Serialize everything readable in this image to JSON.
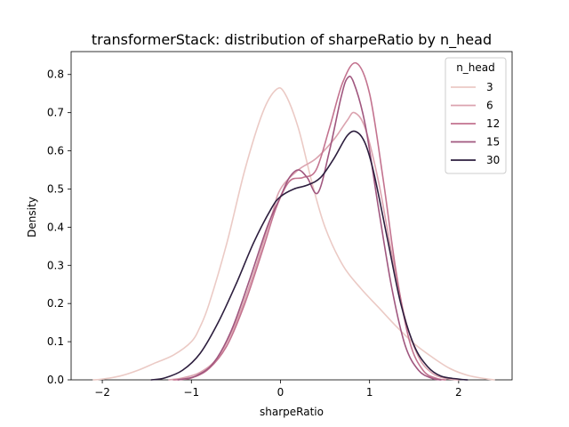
{
  "chart_data": {
    "type": "line",
    "title": "transformerStack: distribution of sharpeRatio by n_head",
    "xlabel": "sharpeRatio",
    "ylabel": "Density",
    "xlim": [
      -2.35,
      2.6
    ],
    "ylim": [
      0,
      0.86
    ],
    "x_ticks": [
      -2,
      -1,
      0,
      1,
      2
    ],
    "x_tick_labels": [
      "−2",
      "−1",
      "0",
      "1",
      "2"
    ],
    "y_ticks": [
      0.0,
      0.1,
      0.2,
      0.3,
      0.4,
      0.5,
      0.6,
      0.7,
      0.8
    ],
    "y_tick_labels": [
      "0.0",
      "0.1",
      "0.2",
      "0.3",
      "0.4",
      "0.5",
      "0.6",
      "0.7",
      "0.8"
    ],
    "grid": false,
    "legend": {
      "title": "n_head",
      "placement": "top-right",
      "entries": [
        "3",
        "6",
        "12",
        "15",
        "30"
      ]
    },
    "series": [
      {
        "name": "3",
        "color": "#ebcac5",
        "points": [
          [
            -2.1,
            0.0
          ],
          [
            -2.0,
            0.002
          ],
          [
            -1.8,
            0.01
          ],
          [
            -1.6,
            0.025
          ],
          [
            -1.4,
            0.045
          ],
          [
            -1.2,
            0.065
          ],
          [
            -1.0,
            0.1
          ],
          [
            -0.9,
            0.14
          ],
          [
            -0.8,
            0.2
          ],
          [
            -0.6,
            0.36
          ],
          [
            -0.4,
            0.55
          ],
          [
            -0.2,
            0.7
          ],
          [
            -0.05,
            0.76
          ],
          [
            0.05,
            0.75
          ],
          [
            0.2,
            0.66
          ],
          [
            0.35,
            0.52
          ],
          [
            0.5,
            0.4
          ],
          [
            0.7,
            0.3
          ],
          [
            0.9,
            0.24
          ],
          [
            1.1,
            0.19
          ],
          [
            1.3,
            0.14
          ],
          [
            1.5,
            0.095
          ],
          [
            1.7,
            0.06
          ],
          [
            1.9,
            0.03
          ],
          [
            2.1,
            0.012
          ],
          [
            2.3,
            0.003
          ],
          [
            2.4,
            0.0
          ]
        ]
      },
      {
        "name": "6",
        "color": "#dba3af",
        "points": [
          [
            -1.25,
            0.0
          ],
          [
            -1.1,
            0.005
          ],
          [
            -0.9,
            0.02
          ],
          [
            -0.7,
            0.06
          ],
          [
            -0.5,
            0.15
          ],
          [
            -0.3,
            0.28
          ],
          [
            -0.1,
            0.43
          ],
          [
            0.0,
            0.5
          ],
          [
            0.2,
            0.55
          ],
          [
            0.4,
            0.58
          ],
          [
            0.6,
            0.63
          ],
          [
            0.75,
            0.68
          ],
          [
            0.83,
            0.7
          ],
          [
            0.95,
            0.66
          ],
          [
            1.1,
            0.52
          ],
          [
            1.25,
            0.33
          ],
          [
            1.4,
            0.16
          ],
          [
            1.55,
            0.06
          ],
          [
            1.7,
            0.018
          ],
          [
            1.85,
            0.004
          ],
          [
            2.0,
            0.0
          ]
        ]
      },
      {
        "name": "12",
        "color": "#c3738f",
        "points": [
          [
            -1.2,
            0.0
          ],
          [
            -1.0,
            0.005
          ],
          [
            -0.8,
            0.03
          ],
          [
            -0.6,
            0.09
          ],
          [
            -0.4,
            0.2
          ],
          [
            -0.2,
            0.34
          ],
          [
            -0.05,
            0.45
          ],
          [
            0.1,
            0.52
          ],
          [
            0.25,
            0.53
          ],
          [
            0.4,
            0.55
          ],
          [
            0.55,
            0.66
          ],
          [
            0.7,
            0.78
          ],
          [
            0.85,
            0.83
          ],
          [
            1.0,
            0.75
          ],
          [
            1.15,
            0.53
          ],
          [
            1.3,
            0.28
          ],
          [
            1.45,
            0.1
          ],
          [
            1.6,
            0.025
          ],
          [
            1.75,
            0.004
          ],
          [
            1.85,
            0.0
          ]
        ]
      },
      {
        "name": "15",
        "color": "#a0577f",
        "points": [
          [
            -1.15,
            0.0
          ],
          [
            -0.95,
            0.01
          ],
          [
            -0.75,
            0.045
          ],
          [
            -0.55,
            0.13
          ],
          [
            -0.35,
            0.26
          ],
          [
            -0.15,
            0.4
          ],
          [
            0.0,
            0.48
          ],
          [
            0.1,
            0.53
          ],
          [
            0.2,
            0.55
          ],
          [
            0.3,
            0.53
          ],
          [
            0.42,
            0.49
          ],
          [
            0.55,
            0.6
          ],
          [
            0.68,
            0.74
          ],
          [
            0.75,
            0.79
          ],
          [
            0.82,
            0.78
          ],
          [
            0.95,
            0.67
          ],
          [
            1.1,
            0.45
          ],
          [
            1.25,
            0.24
          ],
          [
            1.4,
            0.09
          ],
          [
            1.55,
            0.025
          ],
          [
            1.7,
            0.004
          ],
          [
            1.8,
            0.0
          ]
        ]
      },
      {
        "name": "30",
        "color": "#2d1e3e",
        "points": [
          [
            -1.45,
            0.0
          ],
          [
            -1.3,
            0.005
          ],
          [
            -1.1,
            0.025
          ],
          [
            -0.9,
            0.07
          ],
          [
            -0.7,
            0.15
          ],
          [
            -0.5,
            0.25
          ],
          [
            -0.3,
            0.36
          ],
          [
            -0.1,
            0.45
          ],
          [
            0.0,
            0.48
          ],
          [
            0.15,
            0.5
          ],
          [
            0.3,
            0.51
          ],
          [
            0.45,
            0.53
          ],
          [
            0.6,
            0.58
          ],
          [
            0.75,
            0.64
          ],
          [
            0.85,
            0.65
          ],
          [
            0.95,
            0.62
          ],
          [
            1.05,
            0.54
          ],
          [
            1.2,
            0.37
          ],
          [
            1.35,
            0.2
          ],
          [
            1.5,
            0.09
          ],
          [
            1.65,
            0.035
          ],
          [
            1.8,
            0.01
          ],
          [
            2.0,
            0.002
          ],
          [
            2.1,
            0.0
          ]
        ]
      }
    ]
  }
}
